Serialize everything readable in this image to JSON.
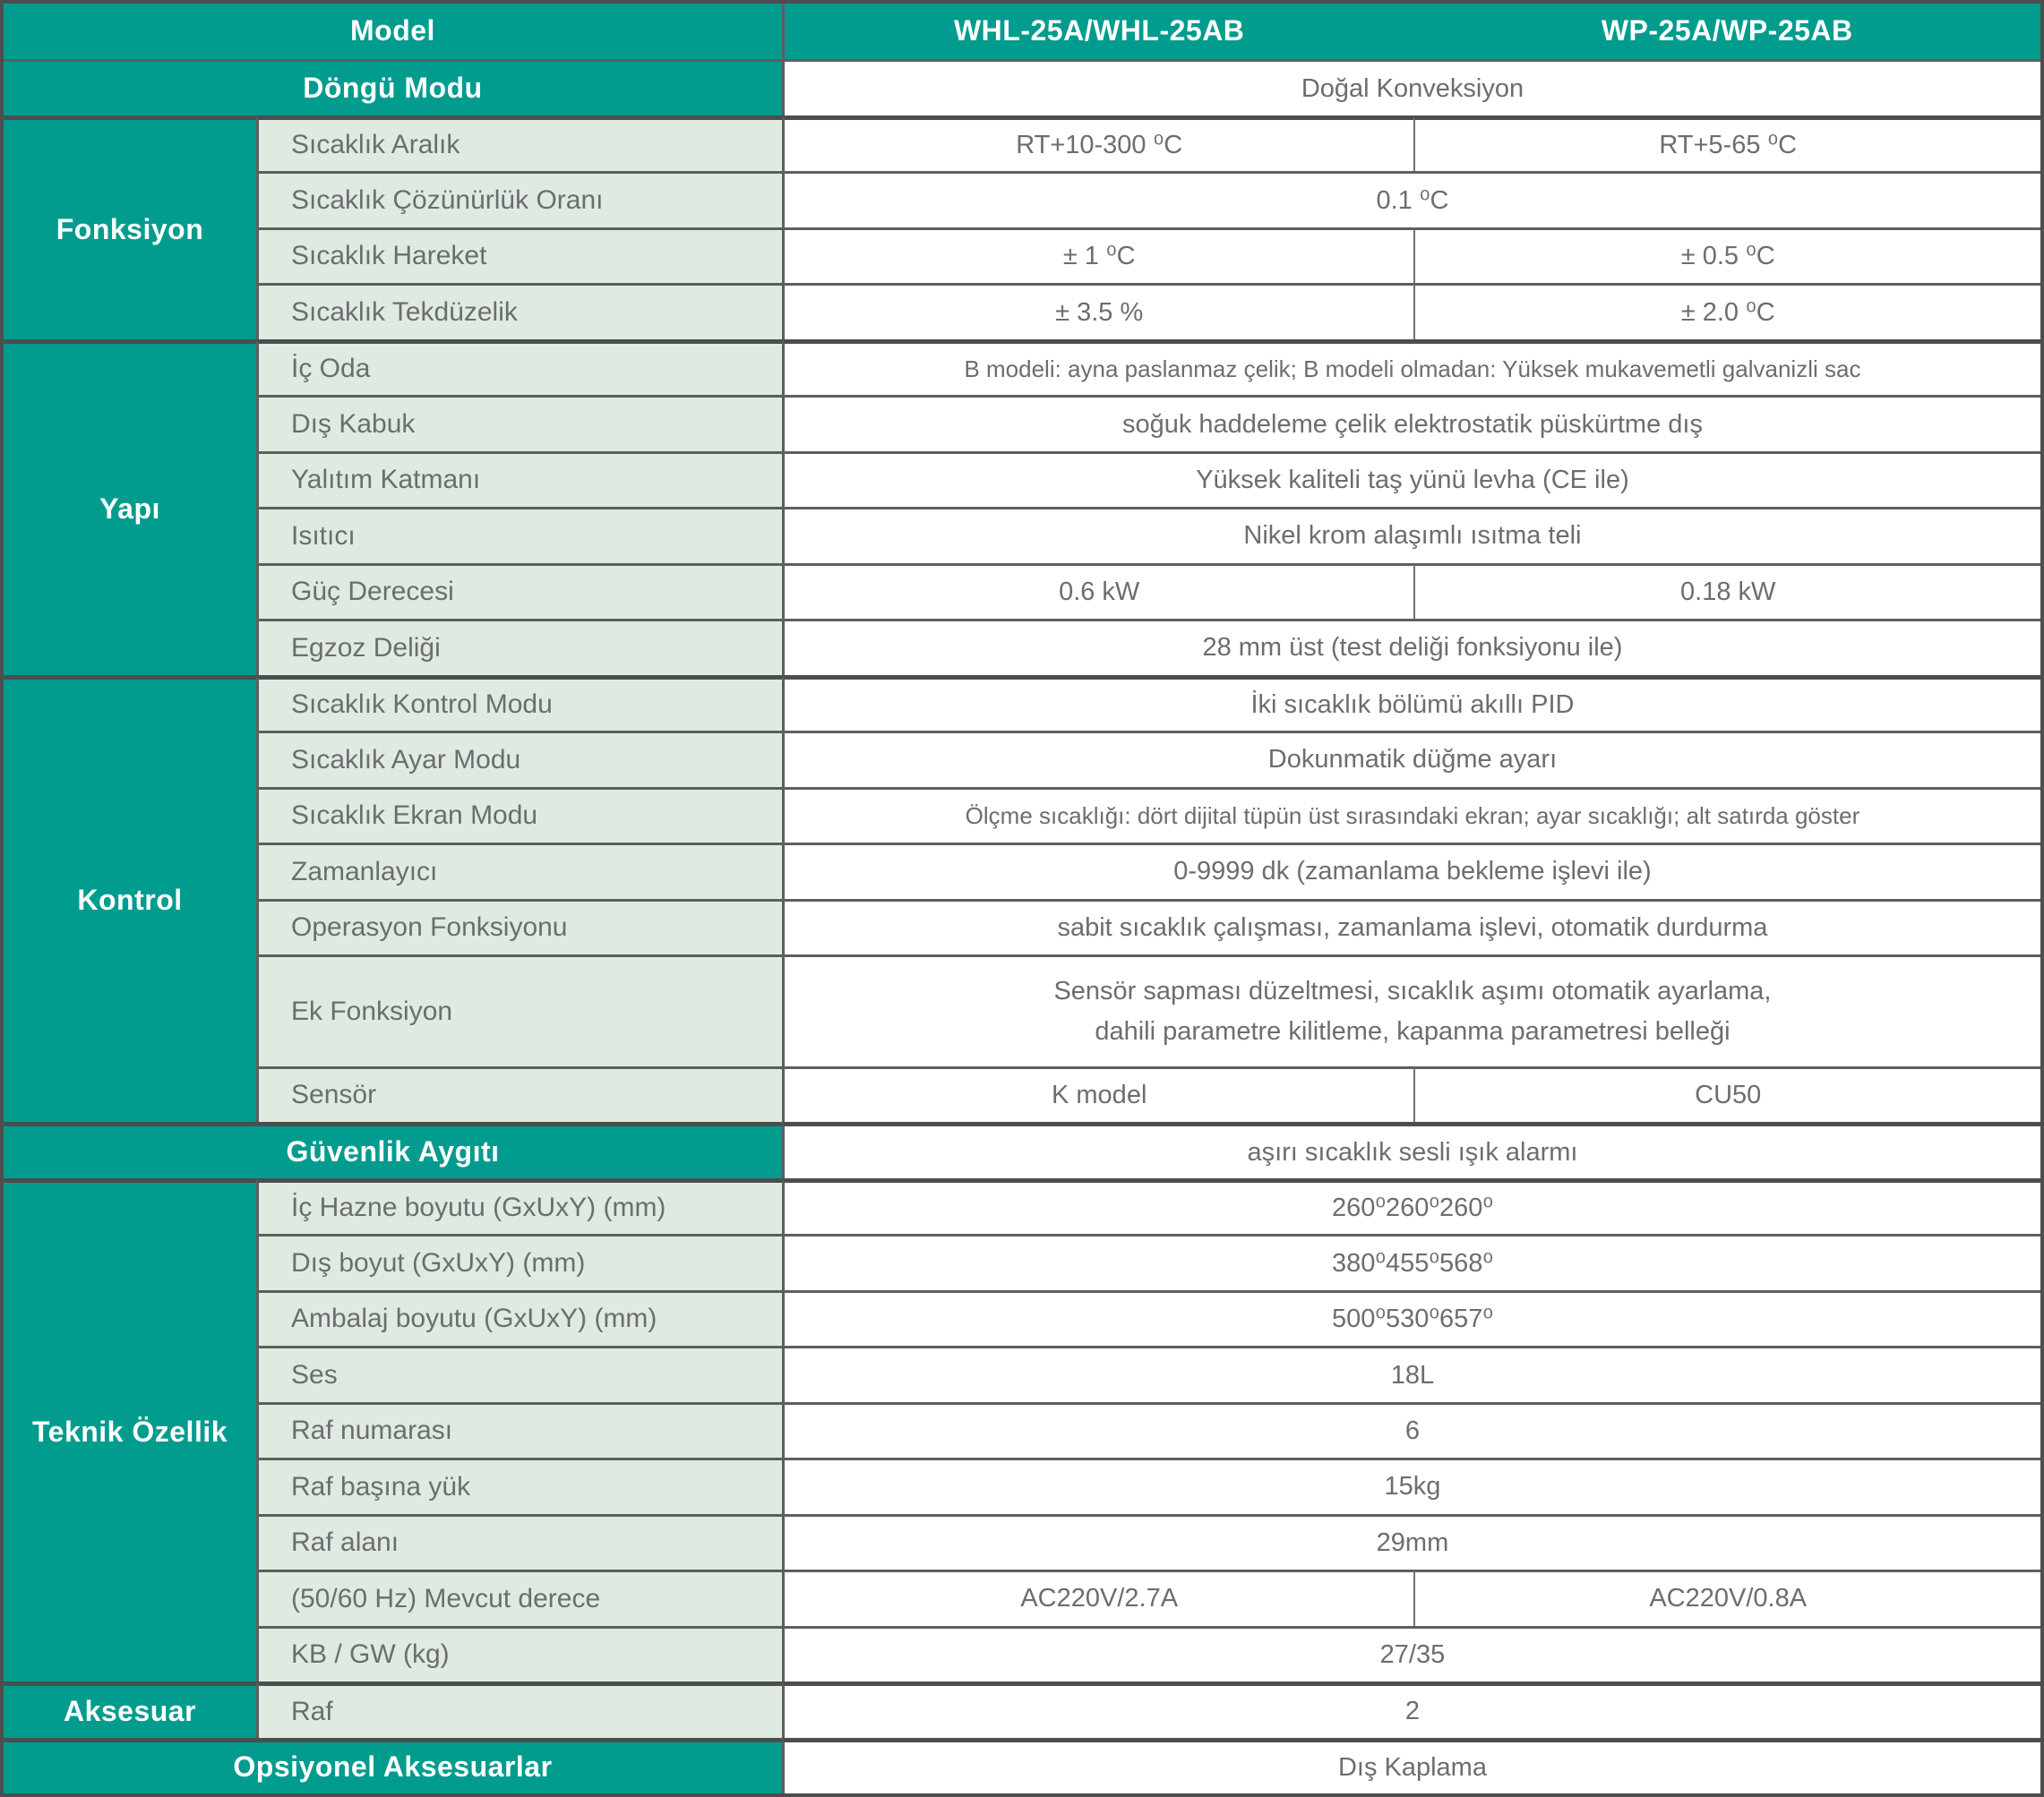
{
  "colors": {
    "teal_accent": "#019c8d",
    "attribute_cell_green": "#dfebe1",
    "border_gray": "#5d5e60",
    "text_gray": "#6c6d70",
    "header_text": "#ffffff"
  },
  "cells": [
    {
      "name": "header-model",
      "text": "Model",
      "r": 1,
      "c": 1,
      "cs": 2,
      "kind": "teal"
    },
    {
      "name": "header-whl-25a",
      "text": "WHL-25A/WHL-25AB",
      "r": 1,
      "c": 3,
      "kind": "teal"
    },
    {
      "name": "header-wp-25a",
      "text": "WP-25A/WP-25AB",
      "r": 1,
      "c": 4,
      "kind": "teal"
    },
    {
      "name": "row-dongu-modu-label",
      "text": "Döngü Modu",
      "r": 2,
      "c": 1,
      "cs": 2,
      "kind": "teal"
    },
    {
      "name": "value-dongu-modu",
      "text": "Doğal Konveksiyon",
      "r": 2,
      "c": 3,
      "cs": 2,
      "kind": "value"
    },
    {
      "name": "section-fonksiyon",
      "text": "Fonksiyon",
      "r": 3,
      "c": 1,
      "rs": 4,
      "kind": "section"
    },
    {
      "name": "attr-sicaklik-aralik",
      "text": "Sıcaklık Aralık",
      "r": 3,
      "c": 2,
      "kind": "attr"
    },
    {
      "name": "value-sicaklik-aralik-whl",
      "text": "RT+10-300 ⁰C",
      "r": 3,
      "c": 3,
      "kind": "value"
    },
    {
      "name": "value-sicaklik-aralik-wp",
      "text": "RT+5-65 ⁰C",
      "r": 3,
      "c": 4,
      "kind": "value"
    },
    {
      "name": "attr-sicaklik-cozunurluk-orani",
      "text": "Sıcaklık Çözünürlük Oranı",
      "r": 4,
      "c": 2,
      "kind": "attr"
    },
    {
      "name": "value-sicaklik-cozunurluk-orani",
      "text": "0.1 ⁰C",
      "r": 4,
      "c": 3,
      "cs": 2,
      "kind": "value"
    },
    {
      "name": "attr-sicaklik-hareket",
      "text": "Sıcaklık Hareket",
      "r": 5,
      "c": 2,
      "kind": "attr"
    },
    {
      "name": "value-sicaklik-hareket-whl",
      "text": "± 1 ⁰C",
      "r": 5,
      "c": 3,
      "kind": "value"
    },
    {
      "name": "value-sicaklik-hareket-wp",
      "text": "± 0.5 ⁰C",
      "r": 5,
      "c": 4,
      "kind": "value"
    },
    {
      "name": "attr-sicaklik-tekduzelik",
      "text": "Sıcaklık Tekdüzelik",
      "r": 6,
      "c": 2,
      "kind": "attr"
    },
    {
      "name": "value-sicaklik-tekduzelik-whl",
      "text": "± 3.5 %",
      "r": 6,
      "c": 3,
      "kind": "value"
    },
    {
      "name": "value-sicaklik-tekduzelik-wp",
      "text": "± 2.0 ⁰C",
      "r": 6,
      "c": 4,
      "kind": "value"
    },
    {
      "name": "section-yapi",
      "text": "Yapı",
      "r": 7,
      "c": 1,
      "rs": 6,
      "kind": "section"
    },
    {
      "name": "attr-ic-oda",
      "text": "İç Oda",
      "r": 7,
      "c": 2,
      "kind": "attr"
    },
    {
      "name": "value-ic-oda",
      "text": "B modeli: ayna paslanmaz çelik; B modeli olmadan: Yüksek mukavemetli galvanizli sac",
      "r": 7,
      "c": 3,
      "cs": 2,
      "kind": "value",
      "long": true
    },
    {
      "name": "attr-dis-kabuk",
      "text": "Dış Kabuk",
      "r": 8,
      "c": 2,
      "kind": "attr"
    },
    {
      "name": "value-dis-kabuk",
      "text": "soğuk haddeleme çelik elektrostatik püskürtme dış",
      "r": 8,
      "c": 3,
      "cs": 2,
      "kind": "value"
    },
    {
      "name": "attr-yalitim-katmani",
      "text": "Yalıtım Katmanı",
      "r": 9,
      "c": 2,
      "kind": "attr"
    },
    {
      "name": "value-yalitim-katmani",
      "text": "Yüksek kaliteli taş yünü levha (CE ile)",
      "r": 9,
      "c": 3,
      "cs": 2,
      "kind": "value"
    },
    {
      "name": "attr-isitici",
      "text": "Isıtıcı",
      "r": 10,
      "c": 2,
      "kind": "attr"
    },
    {
      "name": "value-isitici",
      "text": "Nikel krom alaşımlı ısıtma teli",
      "r": 10,
      "c": 3,
      "cs": 2,
      "kind": "value"
    },
    {
      "name": "attr-guc-derecesi",
      "text": "Güç Derecesi",
      "r": 11,
      "c": 2,
      "kind": "attr"
    },
    {
      "name": "value-guc-derecesi-whl",
      "text": "0.6 kW",
      "r": 11,
      "c": 3,
      "kind": "value"
    },
    {
      "name": "value-guc-derecesi-wp",
      "text": "0.18 kW",
      "r": 11,
      "c": 4,
      "kind": "value"
    },
    {
      "name": "attr-egzoz-deligi",
      "text": "Egzoz Deliği",
      "r": 12,
      "c": 2,
      "kind": "attr"
    },
    {
      "name": "value-egzoz-deligi",
      "text": "28 mm üst (test deliği fonksiyonu ile)",
      "r": 12,
      "c": 3,
      "cs": 2,
      "kind": "value"
    },
    {
      "name": "section-kontrol",
      "text": "Kontrol",
      "r": 13,
      "c": 1,
      "rs": 7,
      "kind": "section"
    },
    {
      "name": "attr-sicaklik-kontrol-modu",
      "text": "Sıcaklık Kontrol Modu",
      "r": 13,
      "c": 2,
      "kind": "attr"
    },
    {
      "name": "value-sicaklik-kontrol-modu",
      "text": "İki sıcaklık bölümü akıllı PID",
      "r": 13,
      "c": 3,
      "cs": 2,
      "kind": "value"
    },
    {
      "name": "attr-sicaklik-ayar-modu",
      "text": "Sıcaklık Ayar Modu",
      "r": 14,
      "c": 2,
      "kind": "attr"
    },
    {
      "name": "value-sicaklik-ayar-modu",
      "text": "Dokunmatik düğme ayarı",
      "r": 14,
      "c": 3,
      "cs": 2,
      "kind": "value"
    },
    {
      "name": "attr-sicaklik-ekran-modu",
      "text": "Sıcaklık Ekran Modu",
      "r": 15,
      "c": 2,
      "kind": "attr"
    },
    {
      "name": "value-sicaklik-ekran-modu",
      "text": "Ölçme sıcaklığı: dört dijital tüpün üst sırasındaki ekran; ayar sıcaklığı; alt satırda göster",
      "r": 15,
      "c": 3,
      "cs": 2,
      "kind": "value",
      "long": true
    },
    {
      "name": "attr-zamanlayici",
      "text": "Zamanlayıcı",
      "r": 16,
      "c": 2,
      "kind": "attr"
    },
    {
      "name": "value-zamanlayici",
      "text": "0-9999 dk (zamanlama bekleme işlevi ile)",
      "r": 16,
      "c": 3,
      "cs": 2,
      "kind": "value"
    },
    {
      "name": "attr-operasyon-fonksiyonu",
      "text": "Operasyon Fonksiyonu",
      "r": 17,
      "c": 2,
      "kind": "attr"
    },
    {
      "name": "value-operasyon-fonksiyonu",
      "text": "sabit sıcaklık çalışması, zamanlama işlevi, otomatik durdurma",
      "r": 17,
      "c": 3,
      "cs": 2,
      "kind": "value"
    },
    {
      "name": "attr-ek-fonksiyon",
      "text": "Ek Fonksiyon",
      "r": 18,
      "c": 2,
      "kind": "attr"
    },
    {
      "name": "value-ek-fonksiyon",
      "text": "Sensör sapması düzeltmesi, sıcaklık aşımı otomatik ayarlama,\ndahili parametre kilitleme, kapanma parametresi belleği",
      "r": 18,
      "c": 3,
      "cs": 2,
      "kind": "value"
    },
    {
      "name": "attr-sensor",
      "text": "Sensör",
      "r": 19,
      "c": 2,
      "kind": "attr"
    },
    {
      "name": "value-sensor-whl",
      "text": "K model",
      "r": 19,
      "c": 3,
      "kind": "value"
    },
    {
      "name": "value-sensor-wp",
      "text": "CU50",
      "r": 19,
      "c": 4,
      "kind": "value"
    },
    {
      "name": "row-guvenlik-aygiti-label",
      "text": "Güvenlik Aygıtı",
      "r": 20,
      "c": 1,
      "cs": 2,
      "kind": "teal"
    },
    {
      "name": "value-guvenlik-aygiti",
      "text": "aşırı sıcaklık sesli ışık alarmı",
      "r": 20,
      "c": 3,
      "cs": 2,
      "kind": "value"
    },
    {
      "name": "section-teknik-ozellik",
      "text": "Teknik Özellik",
      "r": 21,
      "c": 1,
      "rs": 9,
      "kind": "section"
    },
    {
      "name": "attr-ic-hazne-boyutu",
      "text": "İç Hazne boyutu (GxUxY) (mm)",
      "r": 21,
      "c": 2,
      "kind": "attr"
    },
    {
      "name": "value-ic-hazne-boyutu",
      "text": "260⁰260⁰260⁰",
      "r": 21,
      "c": 3,
      "cs": 2,
      "kind": "value"
    },
    {
      "name": "attr-dis-boyut",
      "text": "Dış boyut (GxUxY) (mm)",
      "r": 22,
      "c": 2,
      "kind": "attr"
    },
    {
      "name": "value-dis-boyut",
      "text": "380⁰455⁰568⁰",
      "r": 22,
      "c": 3,
      "cs": 2,
      "kind": "value"
    },
    {
      "name": "attr-ambalaj-boyutu",
      "text": "Ambalaj boyutu (GxUxY) (mm)",
      "r": 23,
      "c": 2,
      "kind": "attr"
    },
    {
      "name": "value-ambalaj-boyutu",
      "text": "500⁰530⁰657⁰",
      "r": 23,
      "c": 3,
      "cs": 2,
      "kind": "value"
    },
    {
      "name": "attr-ses",
      "text": "Ses",
      "r": 24,
      "c": 2,
      "kind": "attr"
    },
    {
      "name": "value-ses",
      "text": "18L",
      "r": 24,
      "c": 3,
      "cs": 2,
      "kind": "value"
    },
    {
      "name": "attr-raf-numarasi",
      "text": "Raf numarası",
      "r": 25,
      "c": 2,
      "kind": "attr"
    },
    {
      "name": "value-raf-numarasi",
      "text": "6",
      "r": 25,
      "c": 3,
      "cs": 2,
      "kind": "value"
    },
    {
      "name": "attr-raf-basina-yuk",
      "text": "Raf başına yük",
      "r": 26,
      "c": 2,
      "kind": "attr"
    },
    {
      "name": "value-raf-basina-yuk",
      "text": "15kg",
      "r": 26,
      "c": 3,
      "cs": 2,
      "kind": "value"
    },
    {
      "name": "attr-raf-alani",
      "text": "Raf alanı",
      "r": 27,
      "c": 2,
      "kind": "attr"
    },
    {
      "name": "value-raf-alani",
      "text": "29mm",
      "r": 27,
      "c": 3,
      "cs": 2,
      "kind": "value"
    },
    {
      "name": "attr-mevcut-derece",
      "text": "(50/60 Hz) Mevcut derece",
      "r": 28,
      "c": 2,
      "kind": "attr"
    },
    {
      "name": "value-mevcut-derece-whl",
      "text": "AC220V/2.7A",
      "r": 28,
      "c": 3,
      "kind": "value"
    },
    {
      "name": "value-mevcut-derece-wp",
      "text": "AC220V/0.8A",
      "r": 28,
      "c": 4,
      "kind": "value"
    },
    {
      "name": "attr-kb-gw",
      "text": "KB / GW (kg)",
      "r": 29,
      "c": 2,
      "kind": "attr"
    },
    {
      "name": "value-kb-gw",
      "text": "27/35",
      "r": 29,
      "c": 3,
      "cs": 2,
      "kind": "value"
    },
    {
      "name": "section-aksesuar",
      "text": "Aksesuar",
      "r": 30,
      "c": 1,
      "kind": "section"
    },
    {
      "name": "attr-raf",
      "text": "Raf",
      "r": 30,
      "c": 2,
      "kind": "attr"
    },
    {
      "name": "value-raf",
      "text": "2",
      "r": 30,
      "c": 3,
      "cs": 2,
      "kind": "value"
    },
    {
      "name": "row-opsiyonel-aksesuarlar-label",
      "text": "Opsiyonel Aksesuarlar",
      "r": 31,
      "c": 1,
      "cs": 2,
      "kind": "teal"
    },
    {
      "name": "value-opsiyonel-aksesuarlar",
      "text": "Dış Kaplama",
      "r": 31,
      "c": 3,
      "cs": 2,
      "kind": "value"
    }
  ]
}
